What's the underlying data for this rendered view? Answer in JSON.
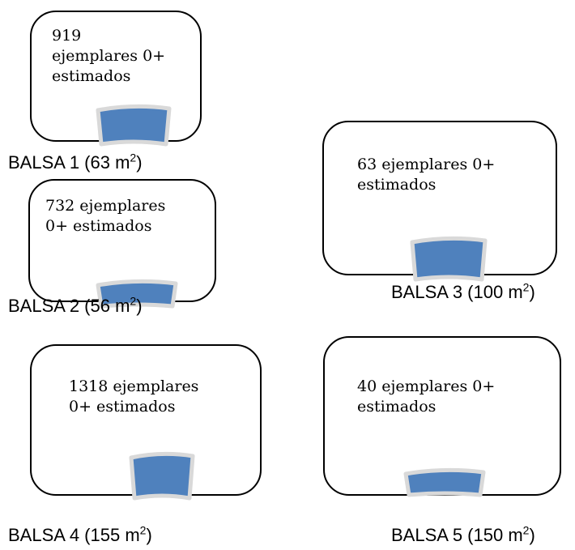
{
  "colors": {
    "tank_fill": "#4f81bd",
    "tank_outline": "#d9d9d9",
    "border": "#000000"
  },
  "ponds": [
    {
      "id": "balsa-1",
      "estimate": "919\nejemplares 0+\nestimados",
      "label_prefix": "BALSA 1 (63 m",
      "label_exp": "2",
      "label_suffix": ")"
    },
    {
      "id": "balsa-2",
      "estimate": "732 ejemplares\n0+ estimados",
      "label_prefix": "BALSA 2 (56 m",
      "label_exp": "2",
      "label_suffix": ")"
    },
    {
      "id": "balsa-3",
      "estimate": "63  ejemplares 0+\nestimados",
      "label_prefix": "BALSA 3 (100 m",
      "label_exp": "2",
      "label_suffix": ")"
    },
    {
      "id": "balsa-4",
      "estimate": "1318 ejemplares\n0+ estimados",
      "label_prefix": "BALSA 4 (155 m",
      "label_exp": "2",
      "label_suffix": ")"
    },
    {
      "id": "balsa-5",
      "estimate": "40 ejemplares 0+\nestimados",
      "label_prefix": "BALSA 5 (150 m",
      "label_exp": "2",
      "label_suffix": ")"
    }
  ]
}
